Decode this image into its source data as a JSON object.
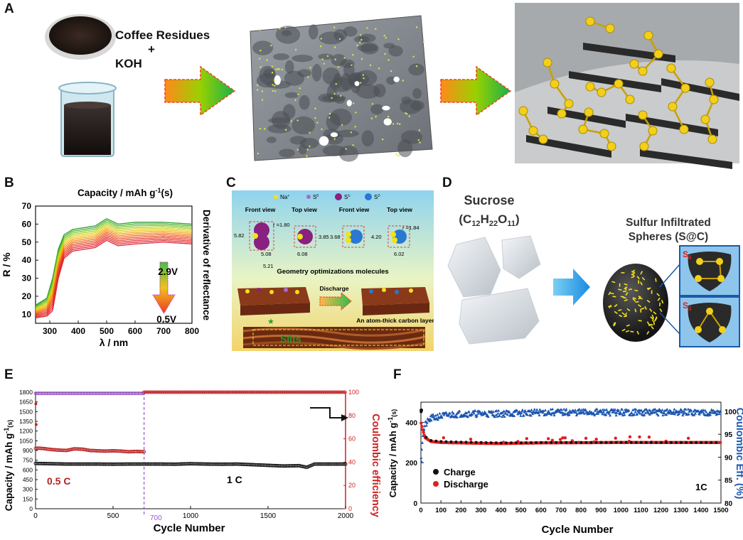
{
  "panels": {
    "a": {
      "letter": "A",
      "label_line1": "Coffee Residues",
      "label_plus": "+",
      "label_line2": "KOH"
    },
    "b": {
      "letter": "B",
      "title": "Capacity / mAh g",
      "title_sup": "-1",
      "title_suffix": "(s)",
      "right_label": "Derivative of reflectance",
      "ylabel": "R / %",
      "xlabel": "λ / nm",
      "v_top": "2.9V",
      "v_bottom": "0.5V"
    },
    "c": {
      "letter": "C",
      "legend": [
        "Na",
        "S",
        "S",
        "S"
      ],
      "legend_sup": [
        "+",
        "0",
        "1-",
        "2-"
      ],
      "views": [
        "Front view",
        "Top view",
        "Front view",
        "Top view"
      ],
      "dims": [
        "5.82",
        "r =1.80",
        "3.85",
        "5.08",
        "5.21",
        "6.08",
        "3.68",
        "4.20",
        "r =1.84",
        "6.02"
      ],
      "geometry": "Geometry optimizations molecules",
      "discharge": "Discharge",
      "layer": "An atom-thick carbon layer",
      "slits": "Slits"
    },
    "d": {
      "letter": "D",
      "sucrose": "Sucrose",
      "formula_parts": [
        "(C",
        "12",
        "H",
        "22",
        "O",
        "11",
        ")"
      ],
      "sphere_line1": "Sulfur Infiltrated",
      "sphere_line2": "Spheres (S@C)",
      "s4": "S",
      "s4_sub": "4",
      "s3": "S",
      "s3_sub": "3"
    },
    "e": {
      "letter": "E",
      "ylabel_left": "Capacity / mAh g",
      "ylabel_left_sup": "-1",
      "ylabel_left_suffix": "(s)",
      "ylabel_right": "Coulombic efficiency",
      "xlabel": "Cycle Number",
      "label_05c": "0.5 C",
      "label_1c": "1 C",
      "marker_700": "700"
    },
    "f": {
      "letter": "F",
      "ylabel_left": "Capacity / mAh g",
      "ylabel_left_sup": "-1",
      "ylabel_left_suffix": "(s)",
      "ylabel_right": "Coulombic Eff. (%)",
      "xlabel": "Cycle Number",
      "legend_charge": "Charge",
      "legend_discharge": "Discharge",
      "rate": "1C"
    }
  },
  "colors": {
    "green_arrow": "#2db84a",
    "red_arrow": "#ee3322",
    "e_red": "#cc2222",
    "e_purple": "#9a55cc",
    "e_black": "#111111",
    "f_blue": "#1a55b0",
    "f_red": "#e02020",
    "sulfur": "#f2d01a"
  },
  "chart_data": [
    {
      "panel": "B",
      "type": "line",
      "xlabel": "λ / nm",
      "ylabel": "R / %",
      "xlim": [
        250,
        800
      ],
      "ylim": [
        5,
        70
      ],
      "xticks": [
        300,
        400,
        500,
        600,
        700,
        800
      ],
      "yticks": [
        10,
        20,
        30,
        40,
        50,
        60,
        70
      ],
      "series_levels_V": [
        2.9,
        0.5
      ],
      "profile_x": [
        250,
        290,
        310,
        330,
        350,
        380,
        420,
        460,
        500,
        540,
        600,
        700,
        800
      ],
      "profile_top": [
        15,
        19,
        30,
        46,
        54,
        57,
        58,
        59,
        63,
        60,
        61,
        61,
        60
      ],
      "profile_bottom": [
        8,
        9,
        12,
        30,
        41,
        45,
        46,
        47,
        51,
        48,
        49,
        50,
        49
      ],
      "n_curves": 14
    },
    {
      "panel": "E",
      "type": "scatter",
      "xlabel": "Cycle Number",
      "ylabel": "Capacity / mAh g-1(s)",
      "y2label": "Coulombic efficiency",
      "xlim": [
        0,
        2000
      ],
      "ylim": [
        0,
        1800
      ],
      "y2lim": [
        0,
        100
      ],
      "xticks": [
        0,
        500,
        1000,
        1500,
        2000
      ],
      "yticks": [
        0,
        150,
        300,
        450,
        600,
        750,
        900,
        1050,
        1200,
        1350,
        1500,
        1650,
        1800
      ],
      "y2ticks": [
        0,
        20,
        40,
        60,
        80,
        100
      ],
      "divider_cycle": 700,
      "series": [
        {
          "name": "0.5 C",
          "x": [
            0,
            20,
            50,
            100,
            150,
            200,
            250,
            300,
            350,
            400,
            450,
            500,
            550,
            600,
            650,
            700
          ],
          "y": [
            930,
            935,
            930,
            915,
            905,
            900,
            925,
            920,
            900,
            895,
            890,
            895,
            890,
            880,
            885,
            880
          ]
        },
        {
          "name": "1 C",
          "x": [
            0,
            100,
            200,
            300,
            400,
            500,
            600,
            700,
            800,
            900,
            1000,
            1100,
            1200,
            1300,
            1400,
            1500,
            1600,
            1700,
            1750,
            1800,
            1900,
            2000
          ],
          "y": [
            700,
            695,
            690,
            690,
            690,
            688,
            690,
            690,
            690,
            688,
            695,
            690,
            688,
            690,
            680,
            670,
            660,
            665,
            640,
            690,
            690,
            690
          ]
        },
        {
          "name": "Coulombic efficiency 0.5 C",
          "x": [
            0,
            700
          ],
          "y": [
            99,
            99
          ]
        },
        {
          "name": "Coulombic efficiency 1 C",
          "x": [
            700,
            2000
          ],
          "y": [
            100,
            100
          ]
        }
      ]
    },
    {
      "panel": "F",
      "type": "scatter",
      "xlabel": "Cycle Number",
      "ylabel": "Capacity / mAh g-1(s)",
      "y2label": "Coulombic Eff. (%)",
      "xlim": [
        0,
        1500
      ],
      "ylim": [
        0,
        500
      ],
      "y2lim": [
        80,
        102
      ],
      "xticks": [
        0,
        100,
        200,
        300,
        400,
        500,
        600,
        700,
        800,
        900,
        1000,
        1100,
        1200,
        1300,
        1400,
        1500
      ],
      "yticks": [
        0,
        200,
        400
      ],
      "y2ticks": [
        80,
        85,
        90,
        95,
        100
      ],
      "series": [
        {
          "name": "Charge",
          "x": [
            0,
            10,
            20,
            50,
            100,
            200,
            300,
            400,
            600,
            800,
            1000,
            1200,
            1400,
            1500
          ],
          "y": [
            460,
            380,
            330,
            310,
            305,
            302,
            300,
            298,
            300,
            300,
            301,
            300,
            300,
            300
          ]
        },
        {
          "name": "Discharge",
          "x": [
            0,
            10,
            20,
            50,
            100,
            200,
            300,
            400,
            600,
            800,
            1000,
            1200,
            1400,
            1500
          ],
          "y": [
            400,
            360,
            325,
            305,
            300,
            298,
            296,
            295,
            298,
            299,
            300,
            300,
            300,
            300
          ]
        },
        {
          "name": "Coulombic Eff.",
          "x": [
            0,
            10,
            20,
            50,
            100,
            200,
            400,
            600,
            800,
            1000,
            1200,
            1400,
            1500
          ],
          "y": [
            90,
            95,
            97,
            98.5,
            99,
            99.5,
            99.5,
            99.8,
            99.8,
            99.8,
            99.8,
            99.8,
            99.8
          ]
        }
      ]
    }
  ]
}
